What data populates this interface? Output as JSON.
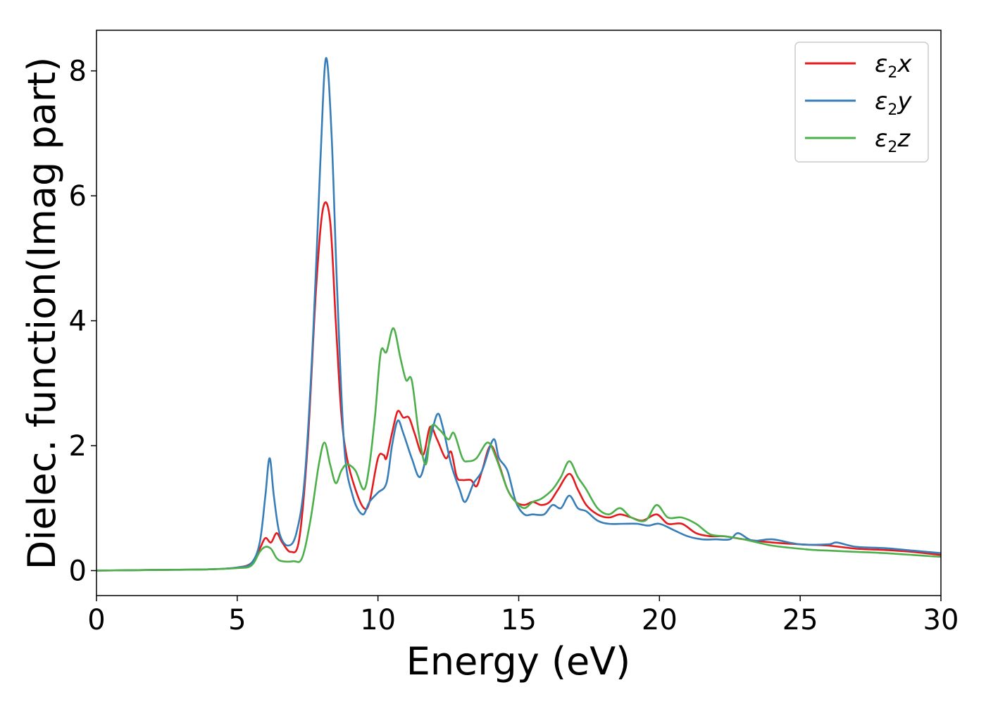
{
  "chart_data": {
    "type": "line",
    "xlabel": "Energy (eV)",
    "ylabel": "Dielec. function(Imag part)",
    "xlim": [
      0,
      30
    ],
    "ylim": [
      -0.4,
      8.65
    ],
    "xticks": [
      0,
      5,
      10,
      15,
      20,
      25,
      30
    ],
    "yticks": [
      0,
      2,
      4,
      6,
      8
    ],
    "grid": false,
    "legend_position": "top-right",
    "series": [
      {
        "name": "x",
        "symbol": "ε",
        "subscript": "2",
        "color": "#e41a1c",
        "points": [
          [
            0,
            0
          ],
          [
            2,
            0.01
          ],
          [
            4,
            0.02
          ],
          [
            5,
            0.05
          ],
          [
            5.5,
            0.12
          ],
          [
            5.8,
            0.35
          ],
          [
            6.0,
            0.52
          ],
          [
            6.2,
            0.45
          ],
          [
            6.4,
            0.6
          ],
          [
            6.6,
            0.45
          ],
          [
            6.9,
            0.3
          ],
          [
            7.2,
            0.5
          ],
          [
            7.5,
            2.0
          ],
          [
            7.8,
            4.5
          ],
          [
            8.05,
            5.8
          ],
          [
            8.3,
            5.6
          ],
          [
            8.5,
            4.0
          ],
          [
            8.7,
            2.5
          ],
          [
            8.9,
            1.8
          ],
          [
            9.2,
            1.3
          ],
          [
            9.5,
            1.0
          ],
          [
            9.7,
            1.1
          ],
          [
            10.0,
            1.8
          ],
          [
            10.2,
            1.85
          ],
          [
            10.3,
            1.8
          ],
          [
            10.5,
            2.2
          ],
          [
            10.7,
            2.55
          ],
          [
            10.9,
            2.45
          ],
          [
            11.1,
            2.45
          ],
          [
            11.3,
            2.2
          ],
          [
            11.6,
            1.85
          ],
          [
            11.85,
            2.3
          ],
          [
            12.1,
            2.1
          ],
          [
            12.4,
            1.8
          ],
          [
            12.6,
            1.9
          ],
          [
            12.8,
            1.5
          ],
          [
            13.0,
            1.45
          ],
          [
            13.3,
            1.45
          ],
          [
            13.5,
            1.35
          ],
          [
            13.7,
            1.6
          ],
          [
            14.0,
            2.0
          ],
          [
            14.3,
            1.7
          ],
          [
            14.6,
            1.3
          ],
          [
            14.9,
            1.1
          ],
          [
            15.2,
            1.05
          ],
          [
            15.5,
            1.1
          ],
          [
            15.8,
            1.05
          ],
          [
            16.1,
            1.1
          ],
          [
            16.4,
            1.3
          ],
          [
            16.8,
            1.55
          ],
          [
            17.1,
            1.3
          ],
          [
            17.4,
            1.05
          ],
          [
            17.8,
            0.9
          ],
          [
            18.2,
            0.85
          ],
          [
            18.6,
            0.9
          ],
          [
            19.0,
            0.85
          ],
          [
            19.4,
            0.8
          ],
          [
            19.9,
            0.9
          ],
          [
            20.3,
            0.75
          ],
          [
            20.8,
            0.75
          ],
          [
            21.3,
            0.6
          ],
          [
            21.8,
            0.55
          ],
          [
            22.3,
            0.55
          ],
          [
            23.0,
            0.5
          ],
          [
            24.0,
            0.45
          ],
          [
            25.0,
            0.42
          ],
          [
            26.0,
            0.4
          ],
          [
            27.0,
            0.35
          ],
          [
            28.0,
            0.33
          ],
          [
            29.0,
            0.3
          ],
          [
            30.0,
            0.25
          ]
        ]
      },
      {
        "name": "y",
        "symbol": "ε",
        "subscript": "2",
        "color": "#377eb8",
        "points": [
          [
            0,
            0
          ],
          [
            2,
            0.01
          ],
          [
            4,
            0.02
          ],
          [
            5,
            0.05
          ],
          [
            5.5,
            0.12
          ],
          [
            5.8,
            0.45
          ],
          [
            6.0,
            1.2
          ],
          [
            6.15,
            1.8
          ],
          [
            6.3,
            1.2
          ],
          [
            6.5,
            0.6
          ],
          [
            6.8,
            0.4
          ],
          [
            7.1,
            0.6
          ],
          [
            7.4,
            1.5
          ],
          [
            7.7,
            3.8
          ],
          [
            7.95,
            6.5
          ],
          [
            8.15,
            8.2
          ],
          [
            8.35,
            7.0
          ],
          [
            8.55,
            4.5
          ],
          [
            8.8,
            2.0
          ],
          [
            9.1,
            1.2
          ],
          [
            9.45,
            0.9
          ],
          [
            9.7,
            1.1
          ],
          [
            10.0,
            1.25
          ],
          [
            10.3,
            1.4
          ],
          [
            10.5,
            2.0
          ],
          [
            10.7,
            2.4
          ],
          [
            10.9,
            2.2
          ],
          [
            11.2,
            1.8
          ],
          [
            11.5,
            1.5
          ],
          [
            11.8,
            2.0
          ],
          [
            12.1,
            2.5
          ],
          [
            12.3,
            2.3
          ],
          [
            12.6,
            1.7
          ],
          [
            12.9,
            1.3
          ],
          [
            13.1,
            1.1
          ],
          [
            13.4,
            1.4
          ],
          [
            13.7,
            1.6
          ],
          [
            14.1,
            2.1
          ],
          [
            14.3,
            1.8
          ],
          [
            14.6,
            1.6
          ],
          [
            14.9,
            1.1
          ],
          [
            15.2,
            0.9
          ],
          [
            15.5,
            0.9
          ],
          [
            15.9,
            0.9
          ],
          [
            16.2,
            1.05
          ],
          [
            16.5,
            1.0
          ],
          [
            16.8,
            1.2
          ],
          [
            17.1,
            1.0
          ],
          [
            17.4,
            0.95
          ],
          [
            17.8,
            0.8
          ],
          [
            18.2,
            0.75
          ],
          [
            18.7,
            0.75
          ],
          [
            19.2,
            0.75
          ],
          [
            19.6,
            0.72
          ],
          [
            20.0,
            0.75
          ],
          [
            20.5,
            0.65
          ],
          [
            21.0,
            0.55
          ],
          [
            21.5,
            0.5
          ],
          [
            22.0,
            0.5
          ],
          [
            22.5,
            0.5
          ],
          [
            22.8,
            0.6
          ],
          [
            23.3,
            0.48
          ],
          [
            24.0,
            0.5
          ],
          [
            25.0,
            0.42
          ],
          [
            26.0,
            0.42
          ],
          [
            26.3,
            0.45
          ],
          [
            27.0,
            0.38
          ],
          [
            28.0,
            0.36
          ],
          [
            29.0,
            0.32
          ],
          [
            29.5,
            0.3
          ],
          [
            30.0,
            0.28
          ]
        ]
      },
      {
        "name": "z",
        "symbol": "ε",
        "subscript": "2",
        "color": "#4daf4a",
        "points": [
          [
            0,
            0
          ],
          [
            2,
            0.01
          ],
          [
            4,
            0.02
          ],
          [
            5,
            0.04
          ],
          [
            5.5,
            0.08
          ],
          [
            5.8,
            0.3
          ],
          [
            6.0,
            0.38
          ],
          [
            6.2,
            0.35
          ],
          [
            6.4,
            0.2
          ],
          [
            6.6,
            0.15
          ],
          [
            7.0,
            0.15
          ],
          [
            7.3,
            0.2
          ],
          [
            7.6,
            0.8
          ],
          [
            7.9,
            1.7
          ],
          [
            8.1,
            2.05
          ],
          [
            8.3,
            1.7
          ],
          [
            8.5,
            1.4
          ],
          [
            8.7,
            1.6
          ],
          [
            8.9,
            1.7
          ],
          [
            9.2,
            1.6
          ],
          [
            9.5,
            1.3
          ],
          [
            9.7,
            1.7
          ],
          [
            9.9,
            2.5
          ],
          [
            10.1,
            3.5
          ],
          [
            10.3,
            3.5
          ],
          [
            10.55,
            3.88
          ],
          [
            10.8,
            3.4
          ],
          [
            11.0,
            3.05
          ],
          [
            11.2,
            3.05
          ],
          [
            11.45,
            2.2
          ],
          [
            11.7,
            1.7
          ],
          [
            11.9,
            2.3
          ],
          [
            12.2,
            2.25
          ],
          [
            12.5,
            2.1
          ],
          [
            12.7,
            2.2
          ],
          [
            13.0,
            1.8
          ],
          [
            13.2,
            1.75
          ],
          [
            13.5,
            1.8
          ],
          [
            13.9,
            2.05
          ],
          [
            14.2,
            1.8
          ],
          [
            14.6,
            1.3
          ],
          [
            14.9,
            1.1
          ],
          [
            15.2,
            1.0
          ],
          [
            15.5,
            1.1
          ],
          [
            15.8,
            1.15
          ],
          [
            16.2,
            1.3
          ],
          [
            16.5,
            1.5
          ],
          [
            16.8,
            1.75
          ],
          [
            17.1,
            1.5
          ],
          [
            17.4,
            1.3
          ],
          [
            17.8,
            1.0
          ],
          [
            18.2,
            0.9
          ],
          [
            18.6,
            1.0
          ],
          [
            19.0,
            0.85
          ],
          [
            19.5,
            0.8
          ],
          [
            19.9,
            1.05
          ],
          [
            20.3,
            0.85
          ],
          [
            20.8,
            0.85
          ],
          [
            21.3,
            0.75
          ],
          [
            21.8,
            0.58
          ],
          [
            22.3,
            0.55
          ],
          [
            23.0,
            0.5
          ],
          [
            24.0,
            0.4
          ],
          [
            25.0,
            0.35
          ],
          [
            25.5,
            0.33
          ],
          [
            26.0,
            0.32
          ],
          [
            27.0,
            0.3
          ],
          [
            28.0,
            0.28
          ],
          [
            29.0,
            0.25
          ],
          [
            30.0,
            0.22
          ]
        ]
      }
    ]
  }
}
